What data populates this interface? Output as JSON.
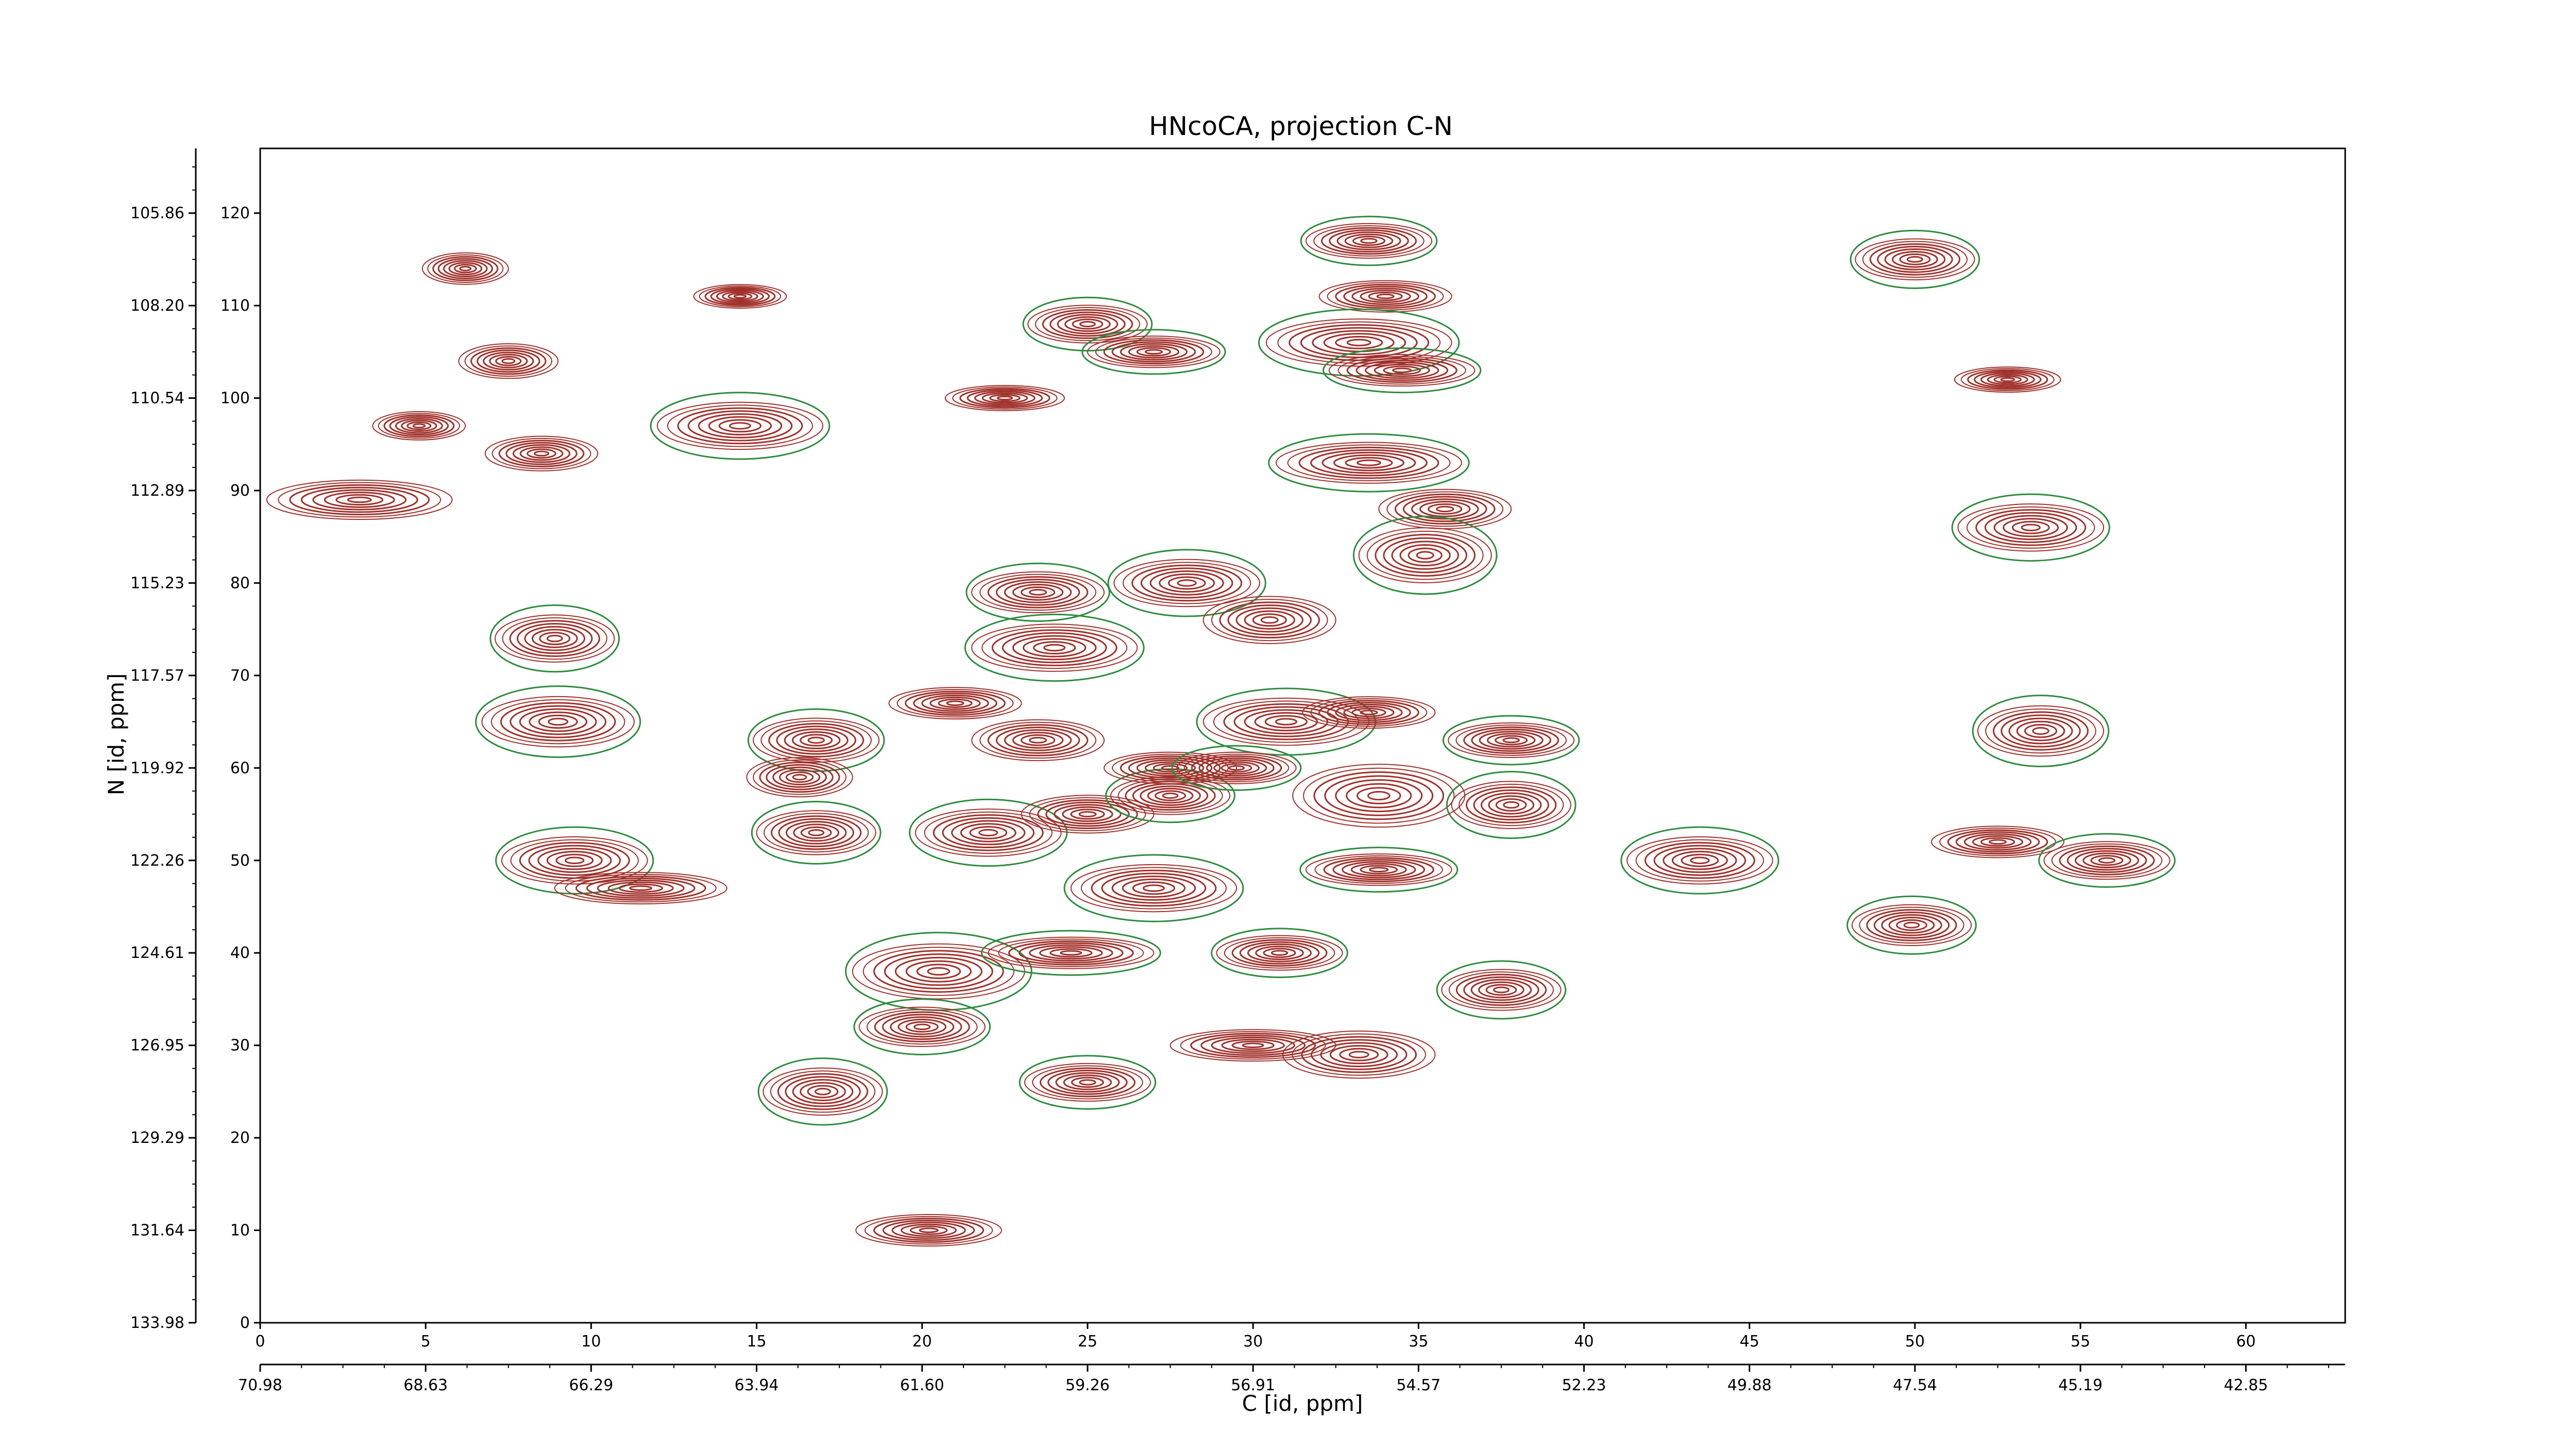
{
  "chart_data": {
    "type": "contour",
    "title": "HNcoCA, projection C-N",
    "xlabel": "C [id, ppm]",
    "ylabel": "N [id, ppm]",
    "xlim": [
      0,
      63
    ],
    "ylim": [
      0,
      127
    ],
    "x_index_ticks": [
      "0",
      "5",
      "10",
      "15",
      "20",
      "25",
      "30",
      "35",
      "40",
      "45",
      "50",
      "55",
      "60"
    ],
    "x_index_values": [
      0,
      5,
      10,
      15,
      20,
      25,
      30,
      35,
      40,
      45,
      50,
      55,
      60
    ],
    "x_ppm_ticks": [
      "70.98",
      "68.63",
      "66.29",
      "63.94",
      "61.60",
      "59.26",
      "56.91",
      "54.57",
      "52.23",
      "49.88",
      "47.54",
      "45.19",
      "42.85"
    ],
    "x_ppm_values": [
      0,
      5,
      10,
      15,
      20,
      25,
      30,
      35,
      40,
      45,
      50,
      55,
      60
    ],
    "y_index_ticks": [
      "0",
      "10",
      "20",
      "30",
      "40",
      "50",
      "60",
      "70",
      "80",
      "90",
      "100",
      "110",
      "120"
    ],
    "y_index_values": [
      0,
      10,
      20,
      30,
      40,
      50,
      60,
      70,
      80,
      90,
      100,
      110,
      120
    ],
    "y_ppm_ticks": [
      "133.98",
      "131.64",
      "129.29",
      "126.95",
      "124.61",
      "122.26",
      "119.92",
      "117.57",
      "115.23",
      "112.89",
      "110.54",
      "108.20",
      "105.86"
    ],
    "y_ppm_values": [
      0,
      10,
      20,
      30,
      40,
      50,
      60,
      70,
      80,
      90,
      100,
      110,
      120
    ],
    "grid": false,
    "colors": {
      "positive": "#a0302a",
      "negative": "#2e8b3e"
    },
    "peaks": [
      {
        "x": 6.2,
        "y": 114,
        "w": 1.3,
        "h": 2.0,
        "neg": false
      },
      {
        "x": 7.5,
        "y": 104,
        "w": 1.5,
        "h": 2.2,
        "neg": false
      },
      {
        "x": 4.8,
        "y": 97,
        "w": 1.4,
        "h": 1.8,
        "neg": false
      },
      {
        "x": 8.5,
        "y": 94,
        "w": 1.7,
        "h": 2.2,
        "neg": false
      },
      {
        "x": 3.0,
        "y": 89,
        "w": 2.8,
        "h": 2.5,
        "neg": false
      },
      {
        "x": 14.5,
        "y": 111,
        "w": 1.4,
        "h": 1.5,
        "neg": false
      },
      {
        "x": 14.5,
        "y": 97,
        "w": 2.5,
        "h": 3.0,
        "neg": true
      },
      {
        "x": 8.9,
        "y": 74,
        "w": 1.8,
        "h": 3.0,
        "neg": true
      },
      {
        "x": 9.0,
        "y": 65,
        "w": 2.3,
        "h": 3.2,
        "neg": true
      },
      {
        "x": 9.5,
        "y": 50,
        "w": 2.2,
        "h": 3.0,
        "neg": true
      },
      {
        "x": 11.5,
        "y": 47,
        "w": 2.6,
        "h": 2.0,
        "neg": false
      },
      {
        "x": 16.8,
        "y": 63,
        "w": 1.9,
        "h": 2.8,
        "neg": true
      },
      {
        "x": 16.3,
        "y": 59,
        "w": 1.6,
        "h": 2.5,
        "neg": false
      },
      {
        "x": 16.8,
        "y": 53,
        "w": 1.8,
        "h": 2.8,
        "neg": true
      },
      {
        "x": 17.0,
        "y": 25,
        "w": 1.8,
        "h": 3.0,
        "neg": true
      },
      {
        "x": 20.5,
        "y": 38,
        "w": 2.6,
        "h": 3.5,
        "neg": true
      },
      {
        "x": 20.0,
        "y": 32,
        "w": 1.9,
        "h": 2.5,
        "neg": true
      },
      {
        "x": 20.2,
        "y": 10,
        "w": 2.2,
        "h": 2.0,
        "neg": false
      },
      {
        "x": 21.0,
        "y": 67,
        "w": 2.0,
        "h": 2.0,
        "neg": false
      },
      {
        "x": 22.0,
        "y": 53,
        "w": 2.2,
        "h": 3.0,
        "neg": true
      },
      {
        "x": 22.5,
        "y": 100,
        "w": 1.8,
        "h": 1.6,
        "neg": false
      },
      {
        "x": 23.5,
        "y": 79,
        "w": 2.0,
        "h": 2.6,
        "neg": true
      },
      {
        "x": 24.0,
        "y": 73,
        "w": 2.5,
        "h": 3.0,
        "neg": true
      },
      {
        "x": 23.5,
        "y": 63,
        "w": 2.0,
        "h": 2.6,
        "neg": false
      },
      {
        "x": 24.5,
        "y": 40,
        "w": 2.5,
        "h": 2.0,
        "neg": true
      },
      {
        "x": 25.0,
        "y": 26,
        "w": 1.9,
        "h": 2.4,
        "neg": true
      },
      {
        "x": 25.0,
        "y": 108,
        "w": 1.8,
        "h": 2.4,
        "neg": true
      },
      {
        "x": 27.0,
        "y": 105,
        "w": 2.0,
        "h": 2.0,
        "neg": true
      },
      {
        "x": 25.0,
        "y": 55,
        "w": 2.0,
        "h": 2.4,
        "neg": false
      },
      {
        "x": 27.5,
        "y": 57,
        "w": 1.8,
        "h": 2.4,
        "neg": true
      },
      {
        "x": 27.0,
        "y": 47,
        "w": 2.5,
        "h": 3.0,
        "neg": true
      },
      {
        "x": 28.0,
        "y": 80,
        "w": 2.2,
        "h": 3.0,
        "neg": true
      },
      {
        "x": 27.5,
        "y": 60,
        "w": 2.0,
        "h": 2.0,
        "neg": false
      },
      {
        "x": 31.0,
        "y": 65,
        "w": 2.5,
        "h": 3.0,
        "neg": true
      },
      {
        "x": 30.5,
        "y": 76,
        "w": 2.0,
        "h": 3.0,
        "neg": false
      },
      {
        "x": 29.5,
        "y": 60,
        "w": 1.8,
        "h": 2.0,
        "neg": true
      },
      {
        "x": 30.8,
        "y": 40,
        "w": 1.9,
        "h": 2.2,
        "neg": true
      },
      {
        "x": 30.0,
        "y": 30,
        "w": 2.5,
        "h": 2.0,
        "neg": false
      },
      {
        "x": 33.2,
        "y": 29,
        "w": 2.3,
        "h": 3.0,
        "neg": false
      },
      {
        "x": 33.5,
        "y": 66,
        "w": 2.0,
        "h": 2.0,
        "neg": false
      },
      {
        "x": 33.8,
        "y": 57,
        "w": 2.6,
        "h": 4.0,
        "neg": false
      },
      {
        "x": 33.8,
        "y": 49,
        "w": 2.2,
        "h": 2.0,
        "neg": true
      },
      {
        "x": 33.5,
        "y": 117,
        "w": 1.9,
        "h": 2.2,
        "neg": true
      },
      {
        "x": 34.0,
        "y": 111,
        "w": 2.0,
        "h": 2.0,
        "neg": false
      },
      {
        "x": 33.2,
        "y": 106,
        "w": 2.8,
        "h": 3.0,
        "neg": true
      },
      {
        "x": 34.5,
        "y": 103,
        "w": 2.2,
        "h": 2.0,
        "neg": true
      },
      {
        "x": 33.5,
        "y": 93,
        "w": 2.8,
        "h": 2.6,
        "neg": true
      },
      {
        "x": 35.8,
        "y": 88,
        "w": 2.0,
        "h": 2.5,
        "neg": false
      },
      {
        "x": 35.2,
        "y": 83,
        "w": 2.0,
        "h": 3.5,
        "neg": true
      },
      {
        "x": 37.8,
        "y": 63,
        "w": 1.9,
        "h": 2.2,
        "neg": true
      },
      {
        "x": 37.8,
        "y": 56,
        "w": 1.8,
        "h": 3.0,
        "neg": true
      },
      {
        "x": 37.5,
        "y": 36,
        "w": 1.8,
        "h": 2.6,
        "neg": true
      },
      {
        "x": 43.5,
        "y": 50,
        "w": 2.2,
        "h": 3.0,
        "neg": true
      },
      {
        "x": 50.0,
        "y": 115,
        "w": 1.8,
        "h": 2.6,
        "neg": true
      },
      {
        "x": 52.8,
        "y": 102,
        "w": 1.6,
        "h": 1.6,
        "neg": false
      },
      {
        "x": 53.5,
        "y": 86,
        "w": 2.2,
        "h": 3.0,
        "neg": true
      },
      {
        "x": 53.8,
        "y": 64,
        "w": 1.9,
        "h": 3.2,
        "neg": true
      },
      {
        "x": 52.5,
        "y": 52,
        "w": 2.0,
        "h": 2.0,
        "neg": false
      },
      {
        "x": 55.8,
        "y": 50,
        "w": 1.9,
        "h": 2.4,
        "neg": true
      },
      {
        "x": 49.9,
        "y": 43,
        "w": 1.8,
        "h": 2.6,
        "neg": true
      }
    ]
  }
}
